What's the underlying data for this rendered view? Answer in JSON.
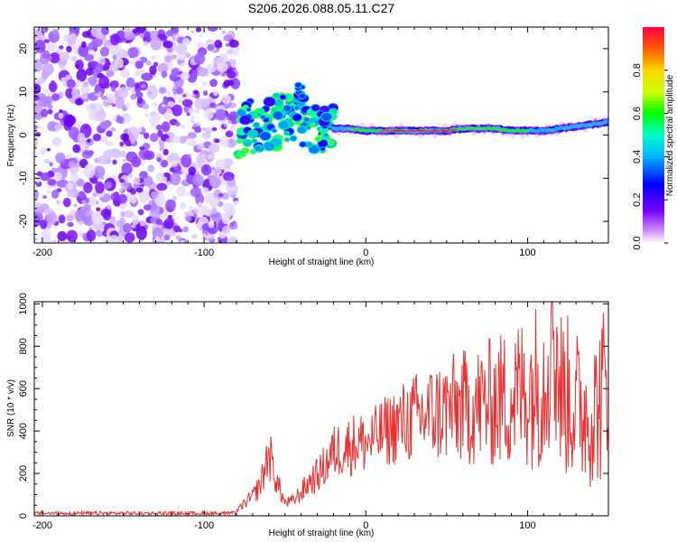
{
  "title": "S206.2026.088.05.11.C27",
  "chart_data": [
    {
      "type": "heatmap",
      "title": "S206.2026.088.05.11.C27",
      "xlabel": "Height of straight line (km)",
      "ylabel": "Frequency (Hz)",
      "xlim": [
        -205,
        150
      ],
      "ylim": [
        -25,
        25
      ],
      "xticks": [
        -200,
        -100,
        0,
        100
      ],
      "xtick_labels": [
        "-200",
        "-100",
        "0",
        "100"
      ],
      "yticks": [
        -20,
        -10,
        0,
        10,
        20
      ],
      "ytick_labels": [
        "-20",
        "-10",
        "0",
        "10",
        "20"
      ],
      "noise_region_x": [
        -205,
        -80
      ],
      "signal_ridge": {
        "x": [
          -80,
          -70,
          -60,
          -50,
          -40,
          -30,
          -20,
          -10,
          0,
          10,
          20,
          30,
          40,
          50,
          60,
          70,
          80,
          90,
          100,
          110,
          120,
          130,
          140,
          150
        ],
        "freq_hz": [
          1,
          2,
          3,
          3.5,
          4,
          2,
          1.5,
          1.5,
          1,
          1,
          1,
          1,
          1,
          1,
          1.5,
          1.5,
          1.5,
          1,
          1,
          1,
          1.5,
          2,
          2.5,
          3
        ],
        "amplitude": [
          0.45,
          0.35,
          0.4,
          0.4,
          0.35,
          0.4,
          0.5,
          0.6,
          0.75,
          0.85,
          0.9,
          0.9,
          0.9,
          0.9,
          0.8,
          0.75,
          0.8,
          0.7,
          0.6,
          0.55,
          0.5,
          0.5,
          0.55,
          0.6
        ]
      },
      "colorbar": {
        "label": "Normalized spectral amplitude",
        "range": [
          0,
          1
        ],
        "ticks": [
          0,
          0.2,
          0.4,
          0.6,
          0.8
        ],
        "tick_labels": [
          "0.0",
          "0.2",
          "0.4",
          "0.6",
          "0.8"
        ]
      }
    },
    {
      "type": "line",
      "xlabel": "Height of straight line (km)",
      "ylabel": "SNR (10 * v/v)",
      "xlim": [
        -205,
        150
      ],
      "ylim": [
        0,
        1010
      ],
      "xticks": [
        -200,
        -100,
        0,
        100
      ],
      "xtick_labels": [
        "-200",
        "-100",
        "0",
        "100"
      ],
      "yticks": [
        0,
        200,
        400,
        600,
        800,
        1000
      ],
      "ytick_labels": [
        "0",
        "200",
        "400",
        "600",
        "800",
        "1000"
      ],
      "series": [
        {
          "name": "SNR",
          "color": "#e83030",
          "x": [
            -205,
            -80,
            -75,
            -70,
            -65,
            -60,
            -55,
            -50,
            -45,
            -40,
            -35,
            -30,
            -25,
            -20,
            -15,
            -10,
            -5,
            0,
            10,
            20,
            30,
            40,
            50,
            60,
            70,
            80,
            90,
            100,
            110,
            115,
            120,
            130,
            140,
            150
          ],
          "y": [
            15,
            20,
            60,
            90,
            150,
            300,
            160,
            60,
            70,
            110,
            160,
            190,
            240,
            300,
            320,
            330,
            350,
            340,
            390,
            430,
            460,
            480,
            500,
            510,
            520,
            540,
            560,
            600,
            640,
            1010,
            600,
            520,
            480,
            620
          ]
        }
      ]
    }
  ]
}
